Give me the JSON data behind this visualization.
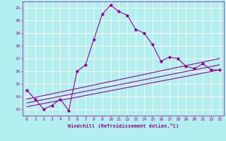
{
  "xlabel": "Windchill (Refroidissement éolien,°C)",
  "ylabel": "",
  "background_color": "#b2efef",
  "grid_color": "#ffffff",
  "line_color": "#990099",
  "xlim": [
    -0.5,
    23.5
  ],
  "ylim": [
    12.5,
    21.5
  ],
  "xticks": [
    0,
    1,
    2,
    3,
    4,
    5,
    6,
    7,
    8,
    9,
    10,
    11,
    12,
    13,
    14,
    15,
    16,
    17,
    18,
    19,
    20,
    21,
    22,
    23
  ],
  "yticks": [
    13,
    14,
    15,
    16,
    17,
    18,
    19,
    20,
    21
  ],
  "line1_x": [
    0,
    1,
    2,
    3,
    4,
    5,
    6,
    7,
    8,
    9,
    10,
    11,
    12,
    13,
    14,
    15,
    16,
    17,
    18,
    19,
    20,
    21,
    22,
    23
  ],
  "line1_y": [
    14.5,
    13.8,
    13.0,
    13.3,
    13.8,
    12.9,
    16.0,
    16.5,
    18.5,
    20.5,
    21.2,
    20.7,
    20.4,
    19.3,
    19.0,
    18.1,
    16.8,
    17.1,
    17.0,
    16.4,
    16.2,
    16.6,
    16.1,
    16.1
  ],
  "line2_x": [
    0,
    23
  ],
  "line2_y": [
    13.2,
    16.1
  ],
  "line3_x": [
    0,
    23
  ],
  "line3_y": [
    13.5,
    16.5
  ],
  "line4_x": [
    0,
    23
  ],
  "line4_y": [
    13.8,
    17.0
  ]
}
